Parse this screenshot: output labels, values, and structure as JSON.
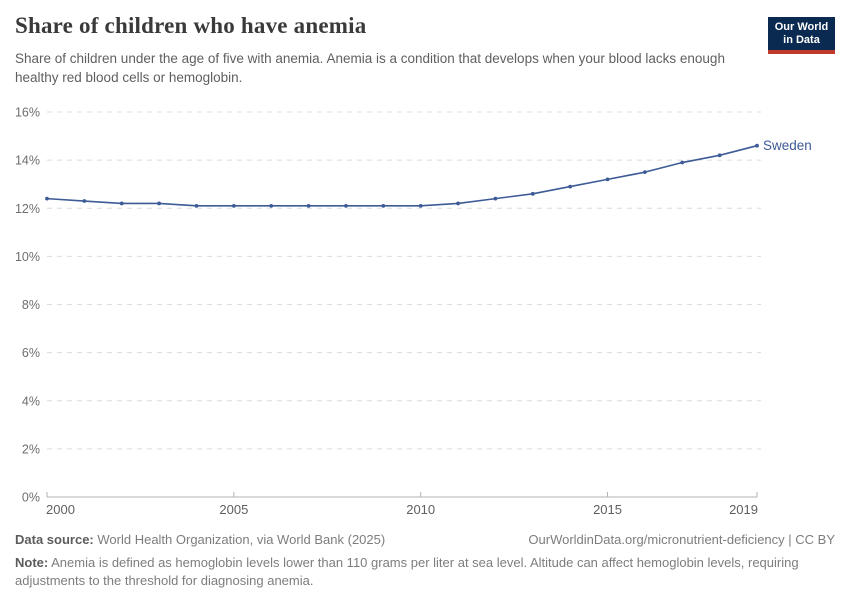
{
  "header": {
    "title": "Share of children who have anemia",
    "subtitle": "Share of children under the age of five with anemia. Anemia is a condition that develops when your blood lacks enough healthy red blood cells or hemoglobin.",
    "logo": {
      "line1": "Our World",
      "line2": "in Data",
      "bg_color": "#0b2a51",
      "accent_color": "#c0392b"
    }
  },
  "chart_data": {
    "type": "line",
    "title": "Share of children who have anemia",
    "x": [
      2000,
      2001,
      2002,
      2003,
      2004,
      2005,
      2006,
      2007,
      2008,
      2009,
      2010,
      2011,
      2012,
      2013,
      2014,
      2015,
      2016,
      2017,
      2018,
      2019
    ],
    "series": [
      {
        "name": "Sweden",
        "color": "#3d5b96",
        "values": [
          12.4,
          12.3,
          12.2,
          12.2,
          12.1,
          12.1,
          12.1,
          12.1,
          12.1,
          12.1,
          12.1,
          12.2,
          12.4,
          12.6,
          12.9,
          13.2,
          13.5,
          13.9,
          14.2,
          14.6
        ]
      }
    ],
    "end_label": "Sweden",
    "xticks": [
      2000,
      2005,
      2010,
      2015,
      2019
    ],
    "yticks": [
      0,
      2,
      4,
      6,
      8,
      10,
      12,
      14,
      16
    ],
    "ylim": [
      0,
      16
    ],
    "xlim": [
      2000,
      2019
    ],
    "ytick_suffix": "%",
    "grid": "horizontal-dashed",
    "legend_position": "end-of-line"
  },
  "footer": {
    "datasource_label": "Data source:",
    "datasource": "World Health Organization, via World Bank (2025)",
    "attribution": "OurWorldinData.org/micronutrient-deficiency | CC BY",
    "note_label": "Note:",
    "note": "Anemia is defined as hemoglobin levels lower than 110 grams per liter at sea level. Altitude can affect hemoglobin levels, requiring adjustments to the threshold for diagnosing anemia."
  }
}
